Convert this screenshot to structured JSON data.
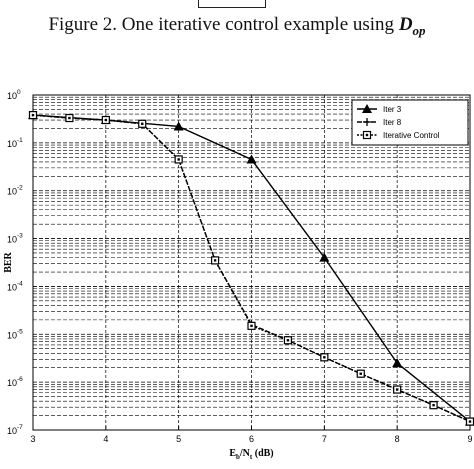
{
  "caption": {
    "prefix": "Figure 2. One iterative control example using ",
    "symbol": "D",
    "symbol_sub": "op"
  },
  "chart_data": {
    "type": "line",
    "title": "",
    "xlabel": "E",
    "xlabel_sub1": "b",
    "xlabel_mid": "/N",
    "xlabel_sub2": "t",
    "xlabel_unit": " (dB)",
    "ylabel": "BER",
    "xlim": [
      3,
      9
    ],
    "ylim": [
      1e-07,
      1
    ],
    "yscale": "log",
    "grid": true,
    "x_ticks": [
      "3",
      "4",
      "5",
      "6",
      "7",
      "8",
      "9"
    ],
    "y_ticks": [
      {
        "base": "10",
        "exp": "0"
      },
      {
        "base": "10",
        "exp": "-1"
      },
      {
        "base": "10",
        "exp": "-2"
      },
      {
        "base": "10",
        "exp": "-3"
      },
      {
        "base": "10",
        "exp": "-4"
      },
      {
        "base": "10",
        "exp": "-5"
      },
      {
        "base": "10",
        "exp": "-6"
      },
      {
        "base": "10",
        "exp": "-7"
      }
    ],
    "legend_position": "top-right",
    "series": [
      {
        "name": "Iter 3",
        "marker": "triangle",
        "dash": "solid",
        "color": "#000000",
        "x": [
          3,
          4,
          5,
          6,
          7,
          8,
          9
        ],
        "y": [
          0.38,
          0.3,
          0.22,
          0.045,
          0.0004,
          2.5e-06,
          1.5e-07
        ]
      },
      {
        "name": "Iter 8",
        "marker": "plus",
        "dash": "dashed",
        "color": "#000000",
        "x": [
          3,
          3.5,
          4,
          4.5,
          5,
          5.5,
          6,
          6.5,
          7,
          7.5,
          8,
          8.5,
          9
        ],
        "y": [
          0.38,
          0.33,
          0.3,
          0.25,
          0.045,
          0.00035,
          1.6e-05,
          7.5e-06,
          3.3e-06,
          1.5e-06,
          7e-07,
          3.3e-07,
          1.5e-07
        ]
      },
      {
        "name": "Iterative Control",
        "marker": "square",
        "dash": "dotted",
        "color": "#000000",
        "x": [
          3,
          3.5,
          4,
          4.5,
          5,
          5.5,
          6,
          6.5,
          7,
          7.5,
          8,
          8.5,
          9
        ],
        "y": [
          0.38,
          0.33,
          0.3,
          0.25,
          0.045,
          0.00035,
          1.5e-05,
          7.5e-06,
          3.3e-06,
          1.5e-06,
          7e-07,
          3.3e-07,
          1.5e-07
        ]
      }
    ]
  }
}
